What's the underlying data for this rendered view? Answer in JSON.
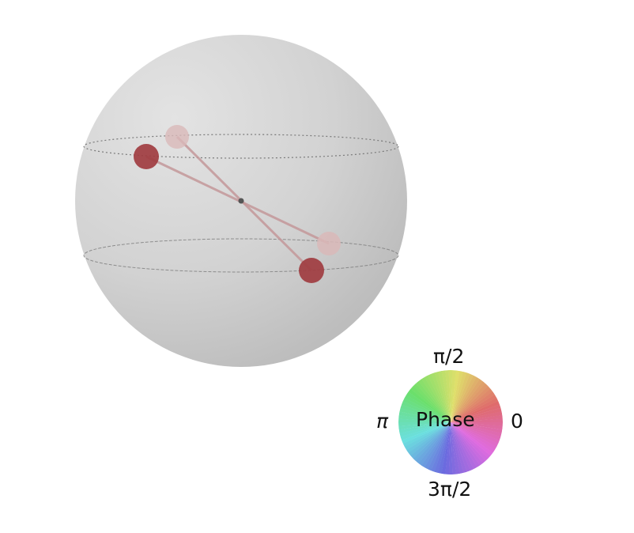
{
  "phase_wheel": {
    "center_label": "Phase",
    "top_label": "π/2",
    "bottom_label": "3π/2",
    "left_label": "π",
    "right_label": "0"
  },
  "state_markers": {
    "color_front": "#a03c40",
    "color_back": "#d9b9b9",
    "line_color": "#c8a0a0"
  },
  "sphere": {
    "fill_light": "#dedede",
    "fill_dark": "#b8b8b8",
    "equator_line_color": "#888888"
  }
}
